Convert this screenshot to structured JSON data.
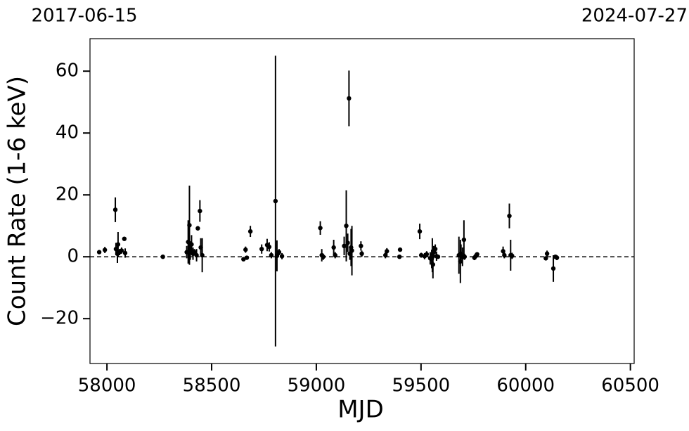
{
  "chart_data": {
    "type": "errorbar",
    "xlabel": "MJD",
    "ylabel": "Count Rate (1-6 keV)",
    "xlim": [
      57919,
      60518
    ],
    "ylim": [
      -34.5,
      70.5
    ],
    "xticks": [
      58000,
      58500,
      59000,
      59500,
      60000,
      60500
    ],
    "yticks": [
      {
        "value": -20,
        "label": "−20"
      },
      0,
      20,
      40,
      60
    ],
    "x2ticks": [
      {
        "value": 57919,
        "label": "2017-06-15"
      },
      {
        "value": 60518,
        "label": "2024-07-27"
      }
    ],
    "hline": 0,
    "color": "#000000",
    "x": [
      57963,
      57990,
      58040,
      58043,
      58050,
      58053,
      58060,
      58070,
      58083,
      58087,
      58267,
      58381,
      58388,
      58394,
      58398,
      58404,
      58411,
      58418,
      58428,
      58434,
      58444,
      58448,
      58455,
      58652,
      58662,
      58668,
      58685,
      58739,
      58765,
      58775,
      58785,
      58805,
      58812,
      58822,
      58836,
      59019,
      59026,
      59033,
      59083,
      59090,
      59133,
      59143,
      59150,
      59156,
      59160,
      59166,
      59170,
      59213,
      59217,
      59330,
      59337,
      59400,
      59397,
      59494,
      59501,
      59517,
      59527,
      59544,
      59551,
      59554,
      59557,
      59561,
      59568,
      59574,
      59581,
      59681,
      59688,
      59691,
      59698,
      59705,
      59708,
      59755,
      59761,
      59768,
      59892,
      59898,
      59922,
      59928,
      59935,
      60096,
      60102,
      60132,
      60142,
      60149
    ],
    "values": [
      1.5,
      2.2,
      15.2,
      2.5,
      1,
      4,
      1.5,
      2,
      5.8,
      1.2,
      0,
      1.5,
      4.8,
      10.2,
      2,
      4,
      1,
      1.5,
      0.5,
      9.2,
      14.8,
      3,
      0.5,
      -0.8,
      2.3,
      -0.3,
      8.2,
      2.5,
      3.8,
      3.2,
      0.5,
      18,
      0.3,
      1.5,
      0.2,
      9.3,
      0.5,
      0,
      3,
      0.5,
      3.5,
      10,
      4.5,
      51.2,
      1,
      3,
      2,
      3.5,
      1,
      0.5,
      1.8,
      2.3,
      0,
      8.2,
      0.5,
      0.2,
      0.8,
      -0.5,
      -0.7,
      0.5,
      -2.5,
      1.5,
      2.5,
      0.2,
      0,
      0.5,
      -1.5,
      1,
      0,
      5.5,
      0,
      -0.3,
      0.2,
      0.8,
      1.8,
      0.5,
      13.2,
      0.5,
      0.3,
      -0.5,
      1,
      -3.8,
      0,
      -0.3
    ],
    "errors": [
      0.5,
      1,
      4,
      2,
      3,
      4,
      1,
      1,
      0.5,
      1.5,
      0.3,
      2,
      7,
      12.8,
      3,
      3,
      2,
      1,
      2,
      0.7,
      3.5,
      3,
      5.5,
      0.3,
      1,
      0.5,
      1.8,
      1.5,
      2,
      1.5,
      1,
      47,
      5,
      1,
      1,
      2.2,
      2,
      1,
      2.5,
      1,
      3,
      11.5,
      3,
      9,
      2,
      6,
      8,
      1.5,
      1,
      1,
      1,
      0.3,
      0.3,
      2.5,
      0.8,
      1,
      1,
      2,
      3,
      5.5,
      4.5,
      2,
      1.5,
      1.5,
      0.5,
      6,
      7,
      3,
      3,
      6.3,
      1,
      0.8,
      1,
      0.5,
      1.5,
      1,
      4,
      5,
      1,
      0.5,
      1,
      4.3,
      0.5,
      0.8
    ]
  }
}
